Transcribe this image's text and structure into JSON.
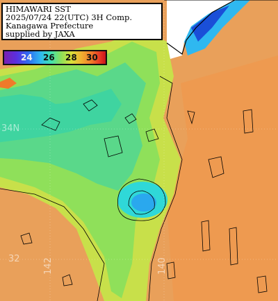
{
  "header": {
    "line1": "HIMAWARI SST",
    "line2": "2025/07/24 22(UTC) 3H Comp.",
    "line3": "Kanagawa Prefecture",
    "line4": "supplied by JAXA"
  },
  "legend": {
    "ticks": [
      "24",
      "26",
      "28",
      "30"
    ],
    "colors": {
      "t24": "#f0f0f0",
      "t26": "#111111",
      "t28": "#111111",
      "t30": "#111111",
      "cold": "#5a2fe0",
      "cool": "#3fe0b0",
      "mid": "#d8e03a",
      "warm": "#e9a05a",
      "hot": "#e83a24"
    }
  },
  "grid_labels": {
    "lat_34": "34N",
    "lat_32": "32",
    "lon_142": "142",
    "lon_140": "140"
  },
  "colors": {
    "land": "#ffffff",
    "coast_line": "#000000",
    "sea_warm": "#e9a05a",
    "sea_green": "#8fe05a",
    "sea_cyan": "#2fd8d8",
    "sea_blue": "#1a4fd8"
  }
}
